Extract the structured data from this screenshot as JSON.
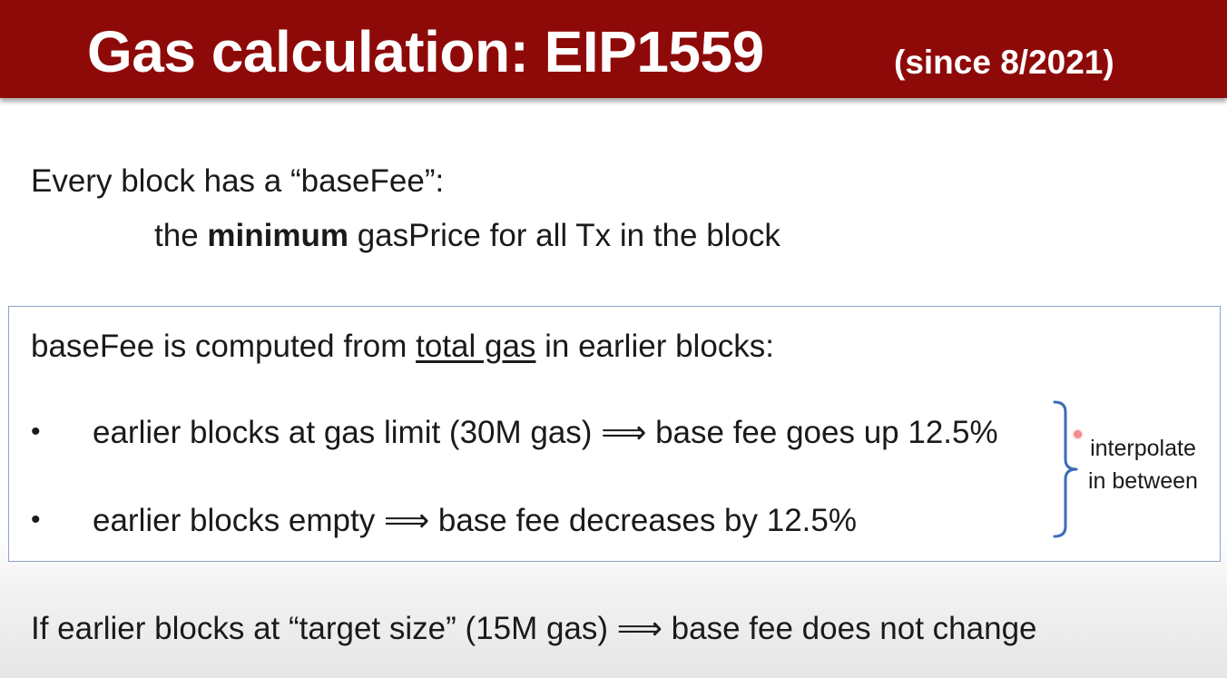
{
  "header": {
    "title": "Gas calculation:  EIP1559",
    "subtitle": "(since 8/2021)",
    "bar_color": "#8e0a09"
  },
  "intro": {
    "line1": "Every block has a “baseFee”:",
    "line2_prefix": "the ",
    "line2_bold": "minimum",
    "line2_suffix": " gasPrice for all Tx in the block"
  },
  "box": {
    "border_color": "#8aa3c6",
    "heading_prefix": "baseFee is computed from ",
    "heading_underlined": "total gas",
    "heading_suffix": " in earlier blocks:",
    "bullets": [
      {
        "marker": "•",
        "text": "earlier blocks at gas limit (30M gas) ⟹ base fee goes up 12.5%"
      },
      {
        "marker": "•",
        "text": "earlier blocks empty ⟹  base fee decreases by 12.5%"
      }
    ],
    "side_note": {
      "line1": "interpolate",
      "line2": "in between",
      "brace_icon": "right-curly-brace-icon",
      "brace_color": "#3d6bb3"
    }
  },
  "footer": {
    "text": "If earlier blocks at “target size” (15M gas)  ⟹  base fee does not change"
  }
}
